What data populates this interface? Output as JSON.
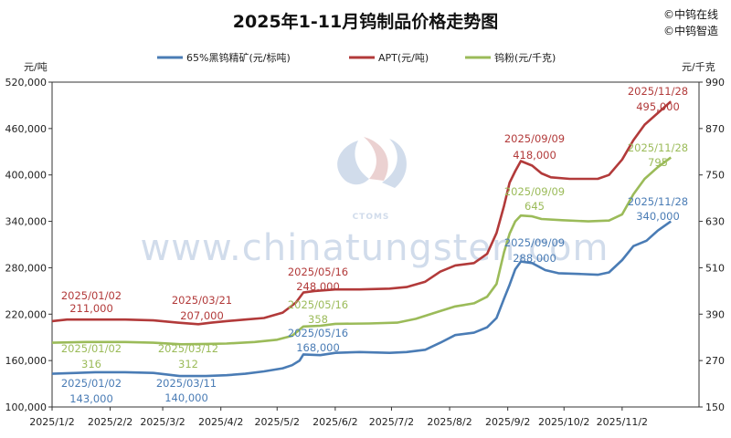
{
  "chart_data": {
    "type": "line",
    "title": "2025年1-11月钨制品价格走势图",
    "brand_lines": [
      "©中钨在线",
      "©中钨智造"
    ],
    "watermark": {
      "url_text": "www.chinatungsten.com",
      "logo_text": "CTOMS"
    },
    "left_axis": {
      "unit": "元/吨",
      "ylim": [
        100000,
        520000
      ],
      "ticks": [
        "100,000",
        "160,000",
        "220,000",
        "280,000",
        "340,000",
        "400,000",
        "460,000",
        "520,000"
      ]
    },
    "right_axis": {
      "unit": "元/千克",
      "ylim": [
        150,
        990
      ],
      "ticks": [
        "150",
        "270",
        "390",
        "510",
        "630",
        "750",
        "870",
        "990"
      ]
    },
    "x_ticks": [
      "2025/1/2",
      "2025/2/2",
      "2025/3/2",
      "2025/4/2",
      "2025/5/2",
      "2025/6/2",
      "2025/7/2",
      "2025/8/2",
      "2025/9/2",
      "2025/10/2",
      "2025/11/2"
    ],
    "series": [
      {
        "name": "65%黑钨精矿(元/标吨)",
        "axis": "left",
        "color": "#4a7cb5",
        "points": [
          [
            "2025/1/2",
            143000
          ],
          [
            "2025/1/15",
            144000
          ],
          [
            "2025/1/25",
            145000
          ],
          [
            "2025/2/10",
            145000
          ],
          [
            "2025/2/25",
            144000
          ],
          [
            "2025/3/11",
            140000
          ],
          [
            "2025/3/25",
            140000
          ],
          [
            "2025/4/5",
            141000
          ],
          [
            "2025/4/15",
            143000
          ],
          [
            "2025/4/25",
            146000
          ],
          [
            "2025/5/5",
            150000
          ],
          [
            "2025/5/10",
            154000
          ],
          [
            "2025/5/14",
            160000
          ],
          [
            "2025/5/16",
            168000
          ],
          [
            "2025/5/25",
            167000
          ],
          [
            "2025/6/2",
            170000
          ],
          [
            "2025/6/15",
            171000
          ],
          [
            "2025/7/1",
            170000
          ],
          [
            "2025/7/10",
            171000
          ],
          [
            "2025/7/20",
            174000
          ],
          [
            "2025/7/28",
            183000
          ],
          [
            "2025/8/5",
            193000
          ],
          [
            "2025/8/15",
            196000
          ],
          [
            "2025/8/22",
            203000
          ],
          [
            "2025/8/27",
            215000
          ],
          [
            "2025/8/31",
            240000
          ],
          [
            "2025/9/3",
            258000
          ],
          [
            "2025/9/6",
            278000
          ],
          [
            "2025/9/9",
            288000
          ],
          [
            "2025/9/15",
            286000
          ],
          [
            "2025/9/22",
            277000
          ],
          [
            "2025/9/29",
            273000
          ],
          [
            "2025/10/10",
            272000
          ],
          [
            "2025/10/20",
            271000
          ],
          [
            "2025/10/26",
            274000
          ],
          [
            "2025/11/2",
            290000
          ],
          [
            "2025/11/8",
            308000
          ],
          [
            "2025/11/15",
            315000
          ],
          [
            "2025/11/21",
            328000
          ],
          [
            "2025/11/28",
            340000
          ]
        ]
      },
      {
        "name": "APT(元/吨)",
        "axis": "left",
        "color": "#b23a3a",
        "points": [
          [
            "2025/1/2",
            211000
          ],
          [
            "2025/1/10",
            213000
          ],
          [
            "2025/1/20",
            213000
          ],
          [
            "2025/2/10",
            213000
          ],
          [
            "2025/2/25",
            212000
          ],
          [
            "2025/3/10",
            209000
          ],
          [
            "2025/3/21",
            207000
          ],
          [
            "2025/3/28",
            209000
          ],
          [
            "2025/4/5",
            211000
          ],
          [
            "2025/4/15",
            213000
          ],
          [
            "2025/4/25",
            215000
          ],
          [
            "2025/5/5",
            222000
          ],
          [
            "2025/5/12",
            235000
          ],
          [
            "2025/5/16",
            248000
          ],
          [
            "2025/5/22",
            250000
          ],
          [
            "2025/6/2",
            252000
          ],
          [
            "2025/6/15",
            252000
          ],
          [
            "2025/7/1",
            253000
          ],
          [
            "2025/7/10",
            255000
          ],
          [
            "2025/7/20",
            262000
          ],
          [
            "2025/7/28",
            275000
          ],
          [
            "2025/8/5",
            283000
          ],
          [
            "2025/8/15",
            286000
          ],
          [
            "2025/8/22",
            298000
          ],
          [
            "2025/8/27",
            325000
          ],
          [
            "2025/8/31",
            360000
          ],
          [
            "2025/9/3",
            390000
          ],
          [
            "2025/9/6",
            405000
          ],
          [
            "2025/9/9",
            418000
          ],
          [
            "2025/9/15",
            412000
          ],
          [
            "2025/9/20",
            402000
          ],
          [
            "2025/9/25",
            397000
          ],
          [
            "2025/10/5",
            395000
          ],
          [
            "2025/10/20",
            395000
          ],
          [
            "2025/10/26",
            400000
          ],
          [
            "2025/11/2",
            420000
          ],
          [
            "2025/11/8",
            445000
          ],
          [
            "2025/11/14",
            465000
          ],
          [
            "2025/11/21",
            480000
          ],
          [
            "2025/11/28",
            495000
          ]
        ]
      },
      {
        "name": "钨粉(元/千克)",
        "axis": "right",
        "color": "#9bbb59",
        "points": [
          [
            "2025/1/2",
            316
          ],
          [
            "2025/1/20",
            318
          ],
          [
            "2025/2/10",
            318
          ],
          [
            "2025/2/25",
            316
          ],
          [
            "2025/3/12",
            312
          ],
          [
            "2025/3/25",
            313
          ],
          [
            "2025/4/5",
            314
          ],
          [
            "2025/4/20",
            318
          ],
          [
            "2025/5/2",
            324
          ],
          [
            "2025/5/10",
            334
          ],
          [
            "2025/5/16",
            358
          ],
          [
            "2025/5/25",
            360
          ],
          [
            "2025/6/2",
            365
          ],
          [
            "2025/6/20",
            366
          ],
          [
            "2025/7/5",
            368
          ],
          [
            "2025/7/15",
            378
          ],
          [
            "2025/7/28",
            398
          ],
          [
            "2025/8/5",
            410
          ],
          [
            "2025/8/15",
            418
          ],
          [
            "2025/8/22",
            435
          ],
          [
            "2025/8/27",
            468
          ],
          [
            "2025/8/31",
            550
          ],
          [
            "2025/9/3",
            598
          ],
          [
            "2025/9/6",
            630
          ],
          [
            "2025/9/9",
            645
          ],
          [
            "2025/9/15",
            643
          ],
          [
            "2025/9/20",
            636
          ],
          [
            "2025/10/1",
            633
          ],
          [
            "2025/10/15",
            630
          ],
          [
            "2025/10/26",
            632
          ],
          [
            "2025/11/2",
            648
          ],
          [
            "2025/11/8",
            700
          ],
          [
            "2025/11/14",
            740
          ],
          [
            "2025/11/21",
            770
          ],
          [
            "2025/11/28",
            795
          ]
        ]
      }
    ],
    "annotations": [
      {
        "series": 1,
        "date": "2025/1/2",
        "value": 211000,
        "date_text": "2025/01/02",
        "value_text": "211,000"
      },
      {
        "series": 1,
        "date": "2025/3/21",
        "value": 207000,
        "date_text": "2025/03/21",
        "value_text": "207,000"
      },
      {
        "series": 1,
        "date": "2025/5/16",
        "value": 248000,
        "date_text": "2025/05/16",
        "value_text": "248,000"
      },
      {
        "series": 1,
        "date": "2025/9/9",
        "value": 418000,
        "date_text": "2025/09/09",
        "value_text": "418,000"
      },
      {
        "series": 1,
        "date": "2025/11/28",
        "value": 495000,
        "date_text": "2025/11/28",
        "value_text": "495,000"
      },
      {
        "series": 2,
        "date": "2025/1/2",
        "value": 316,
        "date_text": "2025/01/02",
        "value_text": "316"
      },
      {
        "series": 2,
        "date": "2025/3/12",
        "value": 312,
        "date_text": "2025/03/12",
        "value_text": "312"
      },
      {
        "series": 2,
        "date": "2025/5/16",
        "value": 358,
        "date_text": "2025/05/16",
        "value_text": "358"
      },
      {
        "series": 2,
        "date": "2025/9/9",
        "value": 645,
        "date_text": "2025/09/09",
        "value_text": "645"
      },
      {
        "series": 2,
        "date": "2025/11/28",
        "value": 795,
        "date_text": "2025/11/28",
        "value_text": "795"
      },
      {
        "series": 0,
        "date": "2025/1/2",
        "value": 143000,
        "date_text": "2025/01/02",
        "value_text": "143,000"
      },
      {
        "series": 0,
        "date": "2025/3/11",
        "value": 140000,
        "date_text": "2025/03/11",
        "value_text": "140,000"
      },
      {
        "series": 0,
        "date": "2025/5/16",
        "value": 168000,
        "date_text": "2025/05/16",
        "value_text": "168,000"
      },
      {
        "series": 0,
        "date": "2025/9/9",
        "value": 288000,
        "date_text": "2025/09/09",
        "value_text": "288,000"
      },
      {
        "series": 0,
        "date": "2025/11/28",
        "value": 340000,
        "date_text": "2025/11/28",
        "value_text": "340,000"
      }
    ]
  }
}
